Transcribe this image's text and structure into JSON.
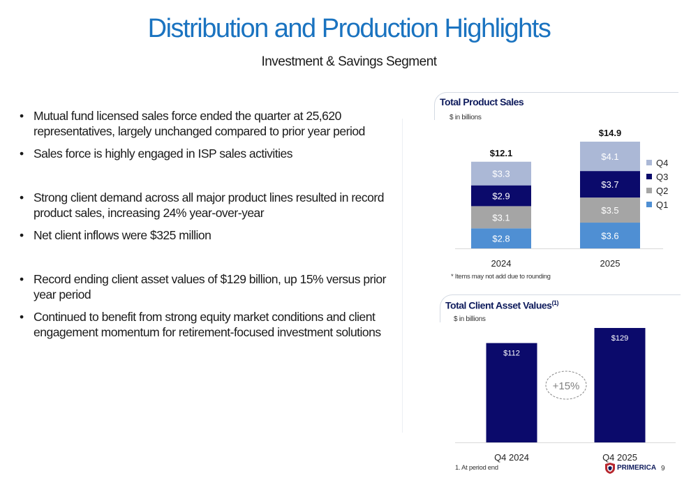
{
  "slide": {
    "title": "Distribution and Production Highlights",
    "subtitle": "Investment & Savings Segment",
    "page_number": "9",
    "logo_text": "PRIMERICA",
    "footnote": "1. At period end"
  },
  "bullets": [
    "Mutual fund licensed sales force ended the quarter at 25,620 representatives, largely unchanged compared to prior year period",
    "Sales force is highly engaged in ISP sales activities",
    "Strong client demand across all major product lines resulted in record product sales, increasing 24% year-over-year",
    "Net client inflows were $325 million",
    "Record ending client asset values of $129 billion, up 15% versus prior year period",
    "Continued to benefit from strong equity market conditions and client engagement momentum for retirement-focused investment solutions"
  ],
  "colors": {
    "title_blue": "#1a73c0",
    "navy": "#0b0a6b",
    "q1": "#4f8fd3",
    "q2": "#a5a5a5",
    "q3": "#0b0a6b",
    "q4": "#abb8d6"
  },
  "chart_data": [
    {
      "type": "bar",
      "stacked": true,
      "title": "Total Product Sales",
      "unit_label": "$ in billions",
      "categories": [
        "2024",
        "2025"
      ],
      "series": [
        {
          "name": "Q1",
          "values": [
            2.8,
            3.6
          ],
          "labels": [
            "$2.8",
            "$3.6"
          ],
          "color": "#4f8fd3"
        },
        {
          "name": "Q2",
          "values": [
            3.1,
            3.5
          ],
          "labels": [
            "$3.1",
            "$3.5"
          ],
          "color": "#a5a5a5"
        },
        {
          "name": "Q3",
          "values": [
            2.9,
            3.7
          ],
          "labels": [
            "$2.9",
            "$3.7"
          ],
          "color": "#0b0a6b"
        },
        {
          "name": "Q4",
          "values": [
            3.3,
            4.1
          ],
          "labels": [
            "$3.3",
            "$4.1"
          ],
          "color": "#abb8d6"
        }
      ],
      "totals": [
        12.1,
        14.9
      ],
      "total_labels": [
        "$12.1",
        "$14.9"
      ],
      "legend_position": "right",
      "note": "* Items may not add due to rounding"
    },
    {
      "type": "bar",
      "title": "Total Client Asset Values",
      "title_superscript": "(1)",
      "unit_label": "$ in billions",
      "categories": [
        "Q4 2024",
        "Q4 2025"
      ],
      "values": [
        112,
        129
      ],
      "value_labels": [
        "$112",
        "$129"
      ],
      "color": "#0b0a6b",
      "annotation": "+15%"
    }
  ]
}
